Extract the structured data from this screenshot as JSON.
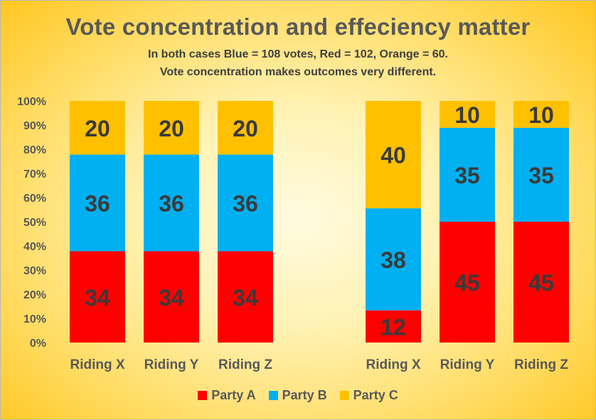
{
  "title": "Vote concentration and effeciency matter",
  "subtitle_1": "In both cases Blue = 108 votes,  Red = 102, Orange = 60.",
  "subtitle_2": "Vote concentration makes outcomes very different.",
  "colors": {
    "party_a": "#ff0000",
    "party_b": "#00b0f0",
    "party_c": "#ffc000",
    "label": "#3a3a3a",
    "axis_text": "#595959"
  },
  "chart_data": {
    "type": "bar",
    "stacked": "percent",
    "ylim": [
      0,
      100
    ],
    "y_ticks": [
      "0%",
      "10%",
      "20%",
      "30%",
      "40%",
      "50%",
      "60%",
      "70%",
      "80%",
      "90%",
      "100%"
    ],
    "categories": [
      "Riding X",
      "Riding Y",
      "Riding Z",
      "",
      "Riding X",
      "Riding Y",
      "Riding Z"
    ],
    "series": [
      {
        "name": "Party A",
        "values": [
          34,
          34,
          34,
          null,
          12,
          45,
          45
        ]
      },
      {
        "name": "Party B",
        "values": [
          36,
          36,
          36,
          null,
          38,
          35,
          35
        ]
      },
      {
        "name": "Party C",
        "values": [
          20,
          20,
          20,
          null,
          40,
          10,
          10
        ]
      }
    ],
    "legend": [
      "Party A",
      "Party B",
      "Party C"
    ],
    "legend_position": "bottom"
  }
}
